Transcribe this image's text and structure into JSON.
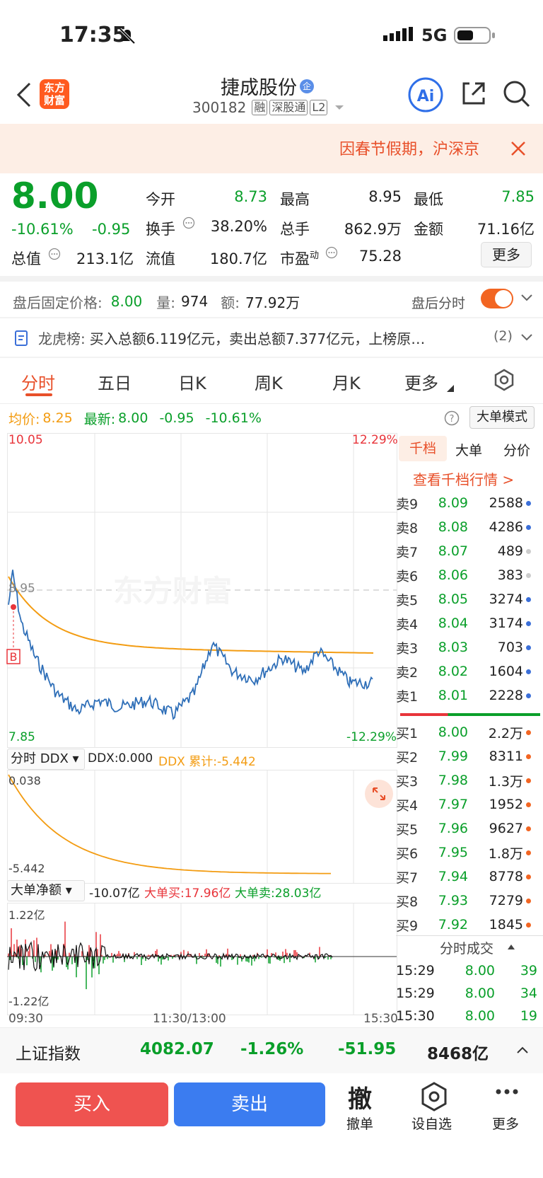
{
  "status": {
    "time": "17:35",
    "network": "5G"
  },
  "nav": {
    "logo": "东方财富",
    "title": "捷成股份",
    "badge": "企",
    "code": "300182",
    "tags": [
      "融",
      "深股通",
      "L2"
    ]
  },
  "banner": {
    "text": "因春节假期，沪深京"
  },
  "quote": {
    "price": "8.00",
    "pct": "-10.61%",
    "chg": "-0.95",
    "f": [
      [
        "今开",
        "8.73"
      ],
      [
        "最高",
        "8.95"
      ],
      [
        "最低",
        "7.85"
      ],
      [
        "换手",
        "38.20%"
      ],
      [
        "总手",
        "862.9万"
      ],
      [
        "金额",
        "71.16亿"
      ],
      [
        "总值",
        "213.1亿"
      ],
      [
        "流值",
        "180.7亿"
      ],
      [
        "市盈动",
        "75.28"
      ]
    ],
    "more": "更多"
  },
  "after": {
    "label": "盘后固定价格:",
    "price": "8.00",
    "vlab": "量:",
    "vol": "974",
    "alab": "额:",
    "amt": "77.92万",
    "tlab": "盘后分时"
  },
  "lhb": {
    "label": "龙虎榜:",
    "text": "买入总额6.119亿元，卖出总额7.377亿元，上榜原…",
    "count": "(2)"
  },
  "tabs": [
    "分时",
    "五日",
    "日K",
    "周K",
    "月K",
    "更多"
  ],
  "summary": {
    "avglab": "均价:",
    "avg": "8.25",
    "newlab": "最新:",
    "new": "8.00",
    "chg": "-0.95",
    "pct": "-10.61%",
    "mode": "大单模式"
  },
  "chart": {
    "ymax": "10.05",
    "ymaxpct": "12.29%",
    "ymin": "7.85",
    "yminpct": "-12.29%",
    "ref": "8.95",
    "bmark": "B",
    "watermark": "东方财富",
    "ddx": {
      "label": "分时 DDX",
      "val": "DDX:0.000",
      "cum": "DDX 累计:-5.442",
      "top": "0.038",
      "bot": "-5.442"
    },
    "net": {
      "label": "大单净额",
      "val": "-10.07亿",
      "buy": "大单买:17.96亿",
      "sell": "大单卖:28.03亿",
      "top": "1.22亿",
      "bot": "-1.22亿"
    },
    "xaxis": [
      "09:30",
      "11:30/13:00",
      "15:30"
    ]
  },
  "side": {
    "tabs": [
      "千档",
      "大单",
      "分价"
    ],
    "link": "查看千档行情 >",
    "asks": [
      [
        "卖9",
        "8.09",
        "2588"
      ],
      [
        "卖8",
        "8.08",
        "4286"
      ],
      [
        "卖7",
        "8.07",
        "489"
      ],
      [
        "卖6",
        "8.06",
        "383"
      ],
      [
        "卖5",
        "8.05",
        "3274"
      ],
      [
        "卖4",
        "8.04",
        "3174"
      ],
      [
        "卖3",
        "8.03",
        "703"
      ],
      [
        "卖2",
        "8.02",
        "1604"
      ],
      [
        "卖1",
        "8.01",
        "2228"
      ]
    ],
    "bids": [
      [
        "买1",
        "8.00",
        "2.2万"
      ],
      [
        "买2",
        "7.99",
        "8311"
      ],
      [
        "买3",
        "7.98",
        "1.3万"
      ],
      [
        "买4",
        "7.97",
        "1952"
      ],
      [
        "买5",
        "7.96",
        "9627"
      ],
      [
        "买6",
        "7.95",
        "1.8万"
      ],
      [
        "买7",
        "7.94",
        "8778"
      ],
      [
        "买8",
        "7.93",
        "7279"
      ],
      [
        "买9",
        "7.92",
        "1845"
      ]
    ],
    "ticktitle": "分时成交",
    "ticks": [
      [
        "15:29",
        "8.00",
        "39"
      ],
      [
        "15:29",
        "8.00",
        "34"
      ],
      [
        "15:30",
        "8.00",
        "19"
      ]
    ]
  },
  "index": {
    "name": "上证指数",
    "val": "4082.07",
    "pct": "-1.26%",
    "chg": "-51.95",
    "amt": "8468亿"
  },
  "bottom": {
    "buy": "买入",
    "sell": "卖出",
    "cancel_icon": "撤",
    "cancel": "撤单",
    "fav": "设自选",
    "more": "更多"
  }
}
